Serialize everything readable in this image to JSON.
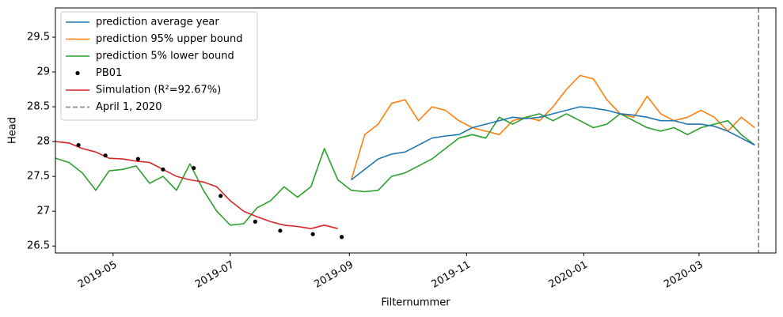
{
  "chart_data": {
    "type": "line",
    "x_label": "Filternummer",
    "y_label": "Head",
    "xlim": [
      "2019-04-01",
      "2020-04-10"
    ],
    "ylim": [
      26.4,
      29.92
    ],
    "xticks": [
      {
        "value": "2019-05-01",
        "label": "2019-05"
      },
      {
        "value": "2019-07-01",
        "label": "2019-07"
      },
      {
        "value": "2019-09-01",
        "label": "2019-09"
      },
      {
        "value": "2019-11-01",
        "label": "2019-11"
      },
      {
        "value": "2020-01-01",
        "label": "2020-01"
      },
      {
        "value": "2020-03-01",
        "label": "2020-03"
      }
    ],
    "yticks": [
      26.5,
      27.0,
      27.5,
      28.0,
      28.5,
      29.0,
      29.5
    ],
    "legend": "upper left",
    "x": [
      "2019-04-01",
      "2019-04-08",
      "2019-04-15",
      "2019-04-22",
      "2019-04-29",
      "2019-05-06",
      "2019-05-13",
      "2019-05-20",
      "2019-05-27",
      "2019-06-03",
      "2019-06-10",
      "2019-06-17",
      "2019-06-24",
      "2019-07-01",
      "2019-07-08",
      "2019-07-15",
      "2019-07-22",
      "2019-07-29",
      "2019-08-05",
      "2019-08-12",
      "2019-08-19",
      "2019-08-26",
      "2019-09-02",
      "2019-09-09",
      "2019-09-16",
      "2019-09-23",
      "2019-09-30",
      "2019-10-07",
      "2019-10-14",
      "2019-10-21",
      "2019-10-28",
      "2019-11-04",
      "2019-11-11",
      "2019-11-18",
      "2019-11-25",
      "2019-12-02",
      "2019-12-09",
      "2019-12-16",
      "2019-12-23",
      "2019-12-30",
      "2020-01-06",
      "2020-01-13",
      "2020-01-20",
      "2020-01-27",
      "2020-02-03",
      "2020-02-10",
      "2020-02-17",
      "2020-02-24",
      "2020-03-02",
      "2020-03-09",
      "2020-03-16",
      "2020-03-23",
      "2020-03-30"
    ],
    "series": [
      {
        "name": "prediction average year",
        "color": "#1f77b4",
        "values": [
          null,
          null,
          null,
          null,
          null,
          null,
          null,
          null,
          null,
          null,
          null,
          null,
          null,
          null,
          null,
          null,
          null,
          null,
          null,
          null,
          null,
          null,
          27.45,
          27.6,
          27.75,
          27.82,
          27.85,
          27.95,
          28.05,
          28.08,
          28.1,
          28.2,
          28.25,
          28.3,
          28.35,
          28.33,
          28.35,
          28.4,
          28.45,
          28.5,
          28.48,
          28.45,
          28.4,
          28.38,
          28.35,
          28.3,
          28.3,
          28.25,
          28.25,
          28.22,
          28.15,
          28.05,
          27.95
        ]
      },
      {
        "name": "prediction 95% upper bound",
        "color": "#ff7f0e",
        "values": [
          null,
          null,
          null,
          null,
          null,
          null,
          null,
          null,
          null,
          null,
          null,
          null,
          null,
          null,
          null,
          null,
          null,
          null,
          null,
          null,
          null,
          null,
          27.45,
          28.1,
          28.25,
          28.55,
          28.6,
          28.3,
          28.5,
          28.45,
          28.3,
          28.2,
          28.15,
          28.1,
          28.3,
          28.35,
          28.3,
          28.5,
          28.75,
          28.95,
          28.9,
          28.6,
          28.4,
          28.35,
          28.65,
          28.4,
          28.3,
          28.35,
          28.45,
          28.35,
          28.15,
          28.35,
          28.2
        ]
      },
      {
        "name": "prediction 5% lower bound",
        "color": "#2ca02c",
        "values": [
          27.76,
          27.7,
          27.55,
          27.3,
          27.58,
          27.6,
          27.65,
          27.4,
          27.5,
          27.3,
          27.68,
          27.3,
          27.0,
          26.8,
          26.82,
          27.05,
          27.15,
          27.35,
          27.2,
          27.35,
          27.9,
          27.45,
          27.3,
          27.28,
          27.3,
          27.5,
          27.55,
          27.65,
          27.75,
          27.9,
          28.05,
          28.1,
          28.05,
          28.35,
          28.25,
          28.35,
          28.4,
          28.3,
          28.4,
          28.3,
          28.2,
          28.25,
          28.4,
          28.3,
          28.2,
          28.15,
          28.2,
          28.1,
          28.2,
          28.25,
          28.3,
          28.1,
          27.95
        ]
      },
      {
        "name": "PB01",
        "color": "#000000",
        "marker": "dot",
        "x": [
          "2019-04-13",
          "2019-04-27",
          "2019-05-14",
          "2019-05-27",
          "2019-06-12",
          "2019-06-26",
          "2019-07-14",
          "2019-07-27",
          "2019-08-13",
          "2019-08-28"
        ],
        "values": [
          27.95,
          27.8,
          27.75,
          27.6,
          27.62,
          27.22,
          26.85,
          26.72,
          26.67,
          26.63
        ]
      },
      {
        "name": "Simulation (R²=92.67%)",
        "color": "#d62728",
        "values": [
          28.0,
          27.98,
          27.9,
          27.85,
          27.76,
          27.75,
          27.72,
          27.7,
          27.6,
          27.5,
          27.45,
          27.42,
          27.35,
          27.15,
          27.0,
          26.92,
          26.85,
          26.8,
          26.78,
          26.75,
          26.8,
          26.75,
          null,
          null,
          null,
          null,
          null,
          null,
          null,
          null,
          null,
          null,
          null,
          null,
          null,
          null,
          null,
          null,
          null,
          null,
          null,
          null,
          null,
          null,
          null,
          null,
          null,
          null,
          null,
          null,
          null,
          null,
          null
        ]
      }
    ],
    "vlines": [
      {
        "x": "2020-04-01",
        "name": "April 1, 2020",
        "color": "#7f7f7f",
        "style": "dashed"
      }
    ]
  }
}
